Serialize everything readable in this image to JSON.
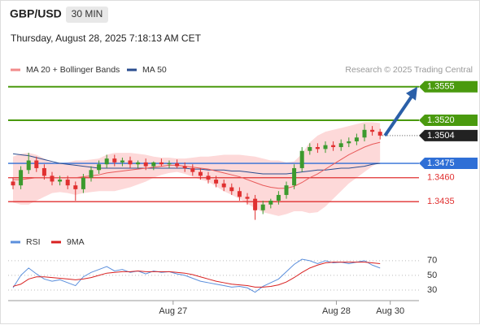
{
  "chart_data": {
    "type": "candlestick",
    "title": "GBP/USD",
    "interval": "30 MIN",
    "subtitle": "Thursday, August 28, 2025 7:18:13 AM CET",
    "watermark": "Research © 2025 Trading Central",
    "up_color": "#3c9a2e",
    "down_color": "#e03030",
    "ylim": [
      1.3408,
      1.3565
    ],
    "xlim": [
      -0.5,
      51
    ],
    "xticks": [
      {
        "value": 20.5,
        "label": "Aug 27"
      },
      {
        "value": 41.4,
        "label": "Aug 28"
      },
      {
        "value": 48.3,
        "label": "Aug 30"
      }
    ],
    "open": [
      1.3456,
      1.3452,
      1.3468,
      1.3478,
      1.347,
      1.3462,
      1.3456,
      1.3458,
      1.3452,
      1.3448,
      1.346,
      1.3468,
      1.3474,
      1.348,
      1.3476,
      1.3478,
      1.3474,
      1.3476,
      1.3472,
      1.3476,
      1.3474,
      1.3475,
      1.3472,
      1.347,
      1.3466,
      1.3462,
      1.3458,
      1.3454,
      1.345,
      1.3446,
      1.344,
      1.3438,
      1.3426,
      1.3432,
      1.3436,
      1.3442,
      1.3452,
      1.347,
      1.3488,
      1.3492,
      1.349,
      1.3494,
      1.3492,
      1.3496,
      1.3498,
      1.3502,
      1.351,
      1.3508
    ],
    "high": [
      1.346,
      1.3472,
      1.3486,
      1.3482,
      1.3474,
      1.3466,
      1.3462,
      1.3462,
      1.3456,
      1.3464,
      1.3472,
      1.3478,
      1.3484,
      1.3484,
      1.3481,
      1.3482,
      1.3478,
      1.348,
      1.3477,
      1.348,
      1.3478,
      1.3479,
      1.3476,
      1.3474,
      1.347,
      1.3466,
      1.3462,
      1.3458,
      1.3454,
      1.345,
      1.3444,
      1.3442,
      1.3436,
      1.3438,
      1.3446,
      1.3456,
      1.3474,
      1.3492,
      1.3496,
      1.3496,
      1.3498,
      1.3498,
      1.35,
      1.3502,
      1.3506,
      1.3516,
      1.3514,
      1.3511
    ],
    "low": [
      1.3448,
      1.3448,
      1.3464,
      1.3466,
      1.3458,
      1.3452,
      1.3452,
      1.3448,
      1.3436,
      1.3444,
      1.3456,
      1.3464,
      1.347,
      1.3472,
      1.3472,
      1.347,
      1.347,
      1.3468,
      1.3468,
      1.3472,
      1.347,
      1.347,
      1.3466,
      1.3462,
      1.3458,
      1.3454,
      1.345,
      1.3446,
      1.3442,
      1.3436,
      1.3432,
      1.3416,
      1.3422,
      1.3428,
      1.3432,
      1.3438,
      1.3448,
      1.3466,
      1.3484,
      1.3486,
      1.3486,
      1.3488,
      1.3488,
      1.3492,
      1.3494,
      1.3498,
      1.3504,
      1.35
    ],
    "close": [
      1.3452,
      1.3468,
      1.3478,
      1.347,
      1.3462,
      1.3456,
      1.3458,
      1.3452,
      1.3448,
      1.346,
      1.3468,
      1.3474,
      1.348,
      1.3476,
      1.3478,
      1.3474,
      1.3476,
      1.3472,
      1.3476,
      1.3474,
      1.3475,
      1.3472,
      1.347,
      1.3466,
      1.3462,
      1.3458,
      1.3454,
      1.345,
      1.3446,
      1.344,
      1.3438,
      1.3426,
      1.3432,
      1.3436,
      1.3442,
      1.3452,
      1.347,
      1.3488,
      1.3492,
      1.349,
      1.3494,
      1.3492,
      1.3496,
      1.3498,
      1.3502,
      1.351,
      1.3508,
      1.3504
    ],
    "ma20": {
      "name": "MA 20 + Bollinger Bands",
      "color": "#e85a5a",
      "legend_color": "#f28b8b",
      "band_color": "#fdd9d9",
      "values": [
        1.3458,
        1.3458,
        1.3459,
        1.346,
        1.346,
        1.346,
        1.346,
        1.346,
        1.346,
        1.3461,
        1.3462,
        1.3463,
        1.3465,
        1.3466,
        1.3467,
        1.3468,
        1.3469,
        1.347,
        1.3471,
        1.3472,
        1.3473,
        1.3473,
        1.3472,
        1.3471,
        1.347,
        1.3469,
        1.3467,
        1.3465,
        1.3463,
        1.3461,
        1.3458,
        1.3455,
        1.3452,
        1.345,
        1.3449,
        1.3449,
        1.3451,
        1.3455,
        1.346,
        1.3464,
        1.3469,
        1.3474,
        1.3479,
        1.3484,
        1.3488,
        1.3492,
        1.3495,
        1.3497
      ],
      "upper": [
        1.3482,
        1.3485,
        1.3486,
        1.3484,
        1.348,
        1.3476,
        1.3475,
        1.3476,
        1.3478,
        1.3478,
        1.3479,
        1.348,
        1.3484,
        1.3486,
        1.3486,
        1.3486,
        1.3485,
        1.3484,
        1.3482,
        1.3481,
        1.3481,
        1.348,
        1.348,
        1.3481,
        1.3482,
        1.3482,
        1.3483,
        1.3484,
        1.3484,
        1.3484,
        1.3483,
        1.3482,
        1.348,
        1.3478,
        1.3478,
        1.3476,
        1.3477,
        1.3485,
        1.3497,
        1.3504,
        1.3508,
        1.351,
        1.3512,
        1.3514,
        1.3516,
        1.3518,
        1.3518,
        1.3517
      ],
      "lower": [
        1.3434,
        1.3432,
        1.3432,
        1.3436,
        1.344,
        1.3444,
        1.3445,
        1.3444,
        1.3442,
        1.3444,
        1.3445,
        1.3446,
        1.3446,
        1.3446,
        1.3448,
        1.345,
        1.3453,
        1.3456,
        1.346,
        1.3463,
        1.3465,
        1.3466,
        1.3464,
        1.3461,
        1.3458,
        1.3456,
        1.3451,
        1.3446,
        1.3442,
        1.3438,
        1.3433,
        1.3428,
        1.3424,
        1.3422,
        1.342,
        1.3422,
        1.3425,
        1.3425,
        1.3423,
        1.3424,
        1.343,
        1.3438,
        1.3446,
        1.3454,
        1.346,
        1.3466,
        1.3472,
        1.3477
      ]
    },
    "ma50": {
      "name": "MA 50",
      "color": "#2a4d8f",
      "values": [
        1.3485,
        1.3484,
        1.3483,
        1.3481,
        1.3479,
        1.3477,
        1.3475,
        1.3474,
        1.3473,
        1.3472,
        1.3471,
        1.347,
        1.347,
        1.347,
        1.347,
        1.347,
        1.347,
        1.347,
        1.347,
        1.347,
        1.347,
        1.347,
        1.347,
        1.3469,
        1.3469,
        1.3468,
        1.3468,
        1.3468,
        1.3467,
        1.3467,
        1.3466,
        1.3465,
        1.3464,
        1.3464,
        1.3464,
        1.3464,
        1.3465,
        1.3466,
        1.3467,
        1.3468,
        1.3468,
        1.3469,
        1.347,
        1.347,
        1.3471,
        1.3472,
        1.3474,
        1.3475
      ]
    },
    "levels": [
      {
        "value": 1.3555,
        "color": "#4a9a0e",
        "style": "box"
      },
      {
        "value": {
          "value": 1.352,
          "label": "1.3520"
        },
        "color": "#4a9a0e",
        "style": "box"
      },
      {
        "value": 1.3504,
        "color": "#222222",
        "style": "current"
      },
      {
        "value": 1.3475,
        "color": "#2f6fd6",
        "style": "box"
      },
      {
        "value": {
          "value": 1.346,
          "label": "1.3460"
        },
        "color": "#e03030",
        "style": "text"
      },
      {
        "value": 1.3435,
        "color": "#e03030",
        "style": "text"
      }
    ],
    "arrow_color": "#2a5fa8",
    "rsi": {
      "ylim": [
        20,
        82
      ],
      "yticks": [
        30,
        50,
        70
      ],
      "series": [
        {
          "name": "RSI",
          "color": "#5b8fdc",
          "values": [
            33,
            50,
            60,
            52,
            45,
            42,
            44,
            40,
            36,
            48,
            54,
            58,
            62,
            56,
            58,
            54,
            56,
            52,
            56,
            54,
            55,
            52,
            50,
            46,
            42,
            40,
            38,
            36,
            34,
            35,
            33,
            27,
            35,
            40,
            45,
            55,
            65,
            72,
            70,
            66,
            70,
            67,
            68,
            66,
            68,
            70,
            64,
            60
          ]
        },
        {
          "name": "9MA",
          "color": "#d82020",
          "values": [
            35,
            38,
            45,
            48,
            48,
            47,
            46,
            45,
            44,
            45,
            47,
            50,
            53,
            54,
            55,
            55,
            56,
            55,
            55,
            55,
            55,
            54,
            53,
            51,
            48,
            45,
            42,
            40,
            38,
            37,
            36,
            34,
            34,
            35,
            37,
            41,
            47,
            54,
            60,
            64,
            67,
            68,
            68,
            68,
            68,
            68,
            67,
            66
          ]
        }
      ]
    }
  }
}
